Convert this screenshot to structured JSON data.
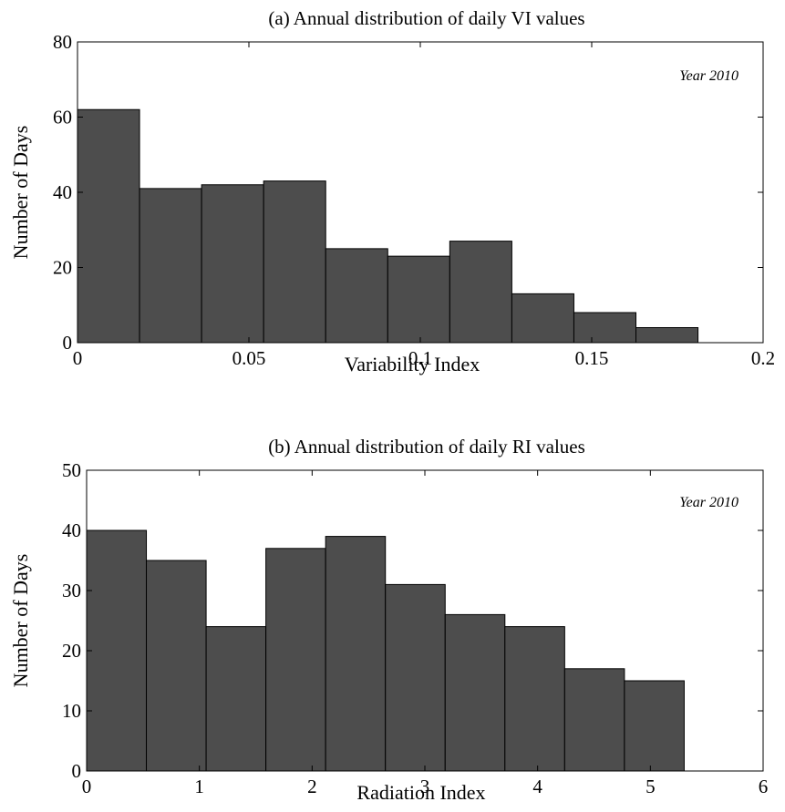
{
  "chart_data": [
    {
      "type": "bar",
      "title": "(a) Annual distribution of daily VI values",
      "xlabel": "Variability Index",
      "ylabel": "Number of Days",
      "annotation": "Year 2010",
      "xlim": [
        0,
        0.2
      ],
      "ylim": [
        0,
        80
      ],
      "xticks": [
        0,
        0.05,
        0.1,
        0.15,
        0.2
      ],
      "xtick_labels": [
        "0",
        "0.05",
        "0.1",
        "0.15",
        "0.2"
      ],
      "yticks": [
        0,
        20,
        40,
        60,
        80
      ],
      "ytick_labels": [
        "0",
        "20",
        "40",
        "60",
        "80"
      ],
      "bin_edges": [
        0,
        0.0181,
        0.0362,
        0.0543,
        0.0724,
        0.0905,
        0.1086,
        0.1267,
        0.1448,
        0.1629,
        0.181,
        0.2
      ],
      "values": [
        62,
        41,
        42,
        43,
        25,
        23,
        27,
        13,
        8,
        4,
        0
      ],
      "grid": false,
      "bar_color": "#4d4d4d"
    },
    {
      "type": "bar",
      "title": "(b) Annual distribution of daily RI values",
      "xlabel": "Radiation Index",
      "ylabel": "Number of Days",
      "annotation": "Year 2010",
      "xlim": [
        0,
        6
      ],
      "ylim": [
        0,
        50
      ],
      "xticks": [
        0,
        1,
        2,
        3,
        4,
        5,
        6
      ],
      "xtick_labels": [
        "0",
        "1",
        "2",
        "3",
        "4",
        "5",
        "6"
      ],
      "yticks": [
        0,
        10,
        20,
        30,
        40,
        50
      ],
      "ytick_labels": [
        "0",
        "10",
        "20",
        "30",
        "40",
        "50"
      ],
      "bin_edges": [
        0,
        0.53,
        1.06,
        1.59,
        2.12,
        2.65,
        3.18,
        3.71,
        4.24,
        4.77,
        5.3,
        6
      ],
      "values": [
        40,
        35,
        24,
        37,
        39,
        31,
        26,
        24,
        17,
        15,
        0
      ],
      "grid": false,
      "bar_color": "#4d4d4d"
    }
  ]
}
